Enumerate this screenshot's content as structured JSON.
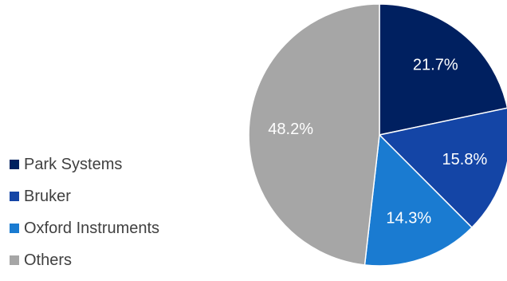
{
  "chart_data": {
    "type": "pie",
    "title": "",
    "legend_position": "left",
    "categories": [
      "Park Systems",
      "Bruker",
      "Oxford Instruments",
      "Others"
    ],
    "values": [
      21.7,
      15.8,
      14.3,
      48.2
    ],
    "data_labels": [
      "21.7%",
      "15.8%",
      "14.3%",
      "48.2%"
    ],
    "colors": [
      "#002060",
      "#1445a6",
      "#1a7bd1",
      "#a6a6a6"
    ],
    "label_color": "#ffffff",
    "start_angle_deg": 0,
    "direction": "clockwise"
  }
}
